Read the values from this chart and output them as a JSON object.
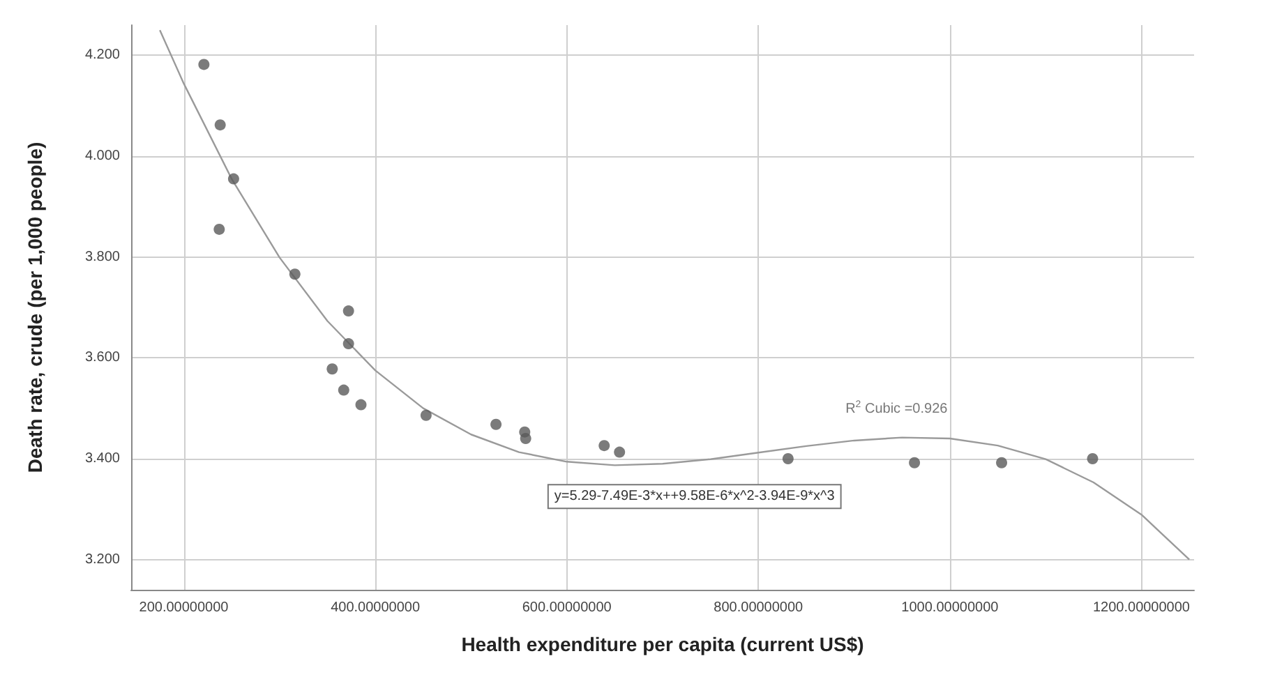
{
  "chart_data": {
    "type": "scatter",
    "xlabel": "Health expenditure per capita (current US$)",
    "ylabel": "Death rate, crude (per 1,000 people)",
    "xlim": [
      145,
      1255
    ],
    "ylim": [
      3.14,
      4.26
    ],
    "xticks": [
      {
        "value": 200,
        "label": "200.00000000"
      },
      {
        "value": 400,
        "label": "400.00000000"
      },
      {
        "value": 600,
        "label": "600.00000000"
      },
      {
        "value": 800,
        "label": "800.00000000"
      },
      {
        "value": 1000,
        "label": "1000.00000000"
      },
      {
        "value": 1200,
        "label": "1200.00000000"
      }
    ],
    "yticks": [
      {
        "value": 3.2,
        "label": "3.200"
      },
      {
        "value": 3.4,
        "label": "3.400"
      },
      {
        "value": 3.6,
        "label": "3.600"
      },
      {
        "value": 3.8,
        "label": "3.800"
      },
      {
        "value": 4.0,
        "label": "4.000"
      },
      {
        "value": 4.2,
        "label": "4.200"
      }
    ],
    "grid": true,
    "marker": "circle",
    "annotations": [
      "R$^{2}$ Cubic =0.926",
      "y=5.29-7.49E-3*x++9.58E-6*x^2-3.94E-9*x^3"
    ],
    "series": [
      {
        "color": "#5a5a5a",
        "x": [
          221,
          238,
          252,
          237,
          316,
          372,
          372,
          355,
          367,
          385,
          453,
          526,
          556,
          557,
          639,
          655,
          831,
          963,
          1054,
          1149
        ],
        "values": [
          4.182,
          4.062,
          3.955,
          3.855,
          3.766,
          3.693,
          3.628,
          3.578,
          3.536,
          3.507,
          3.486,
          3.468,
          3.453,
          3.44,
          3.426,
          3.413,
          3.4,
          3.392,
          3.392,
          3.4
        ]
      },
      {
        "type": "line",
        "color": "#9a9a9a",
        "marker": "none",
        "x": [
          175,
          200,
          250,
          300,
          350,
          400,
          450,
          500,
          550,
          600,
          650,
          700,
          750,
          800,
          850,
          900,
          950,
          1000,
          1050,
          1100,
          1150,
          1200,
          1250
        ],
        "values": [
          4.25,
          4.144,
          3.955,
          3.799,
          3.673,
          3.575,
          3.5,
          3.448,
          3.413,
          3.394,
          3.387,
          3.39,
          3.399,
          3.412,
          3.425,
          3.436,
          3.442,
          3.44,
          3.426,
          3.399,
          3.353,
          3.289,
          3.2
        ]
      }
    ]
  }
}
